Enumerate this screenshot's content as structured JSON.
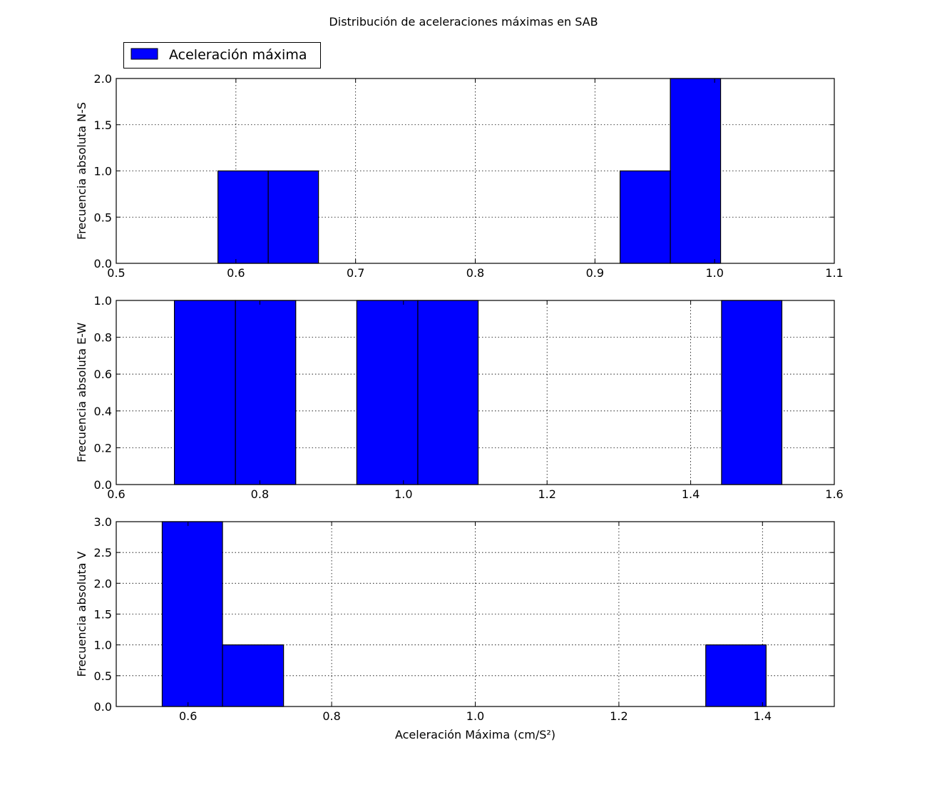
{
  "figure": {
    "title": "Distribución de aceleraciones máximas en SAB",
    "legend": {
      "label": "Aceleración máxima",
      "placement": "upper-left, above the top panel",
      "color": "#0000ff"
    }
  },
  "colors": {
    "bar_fill": "#0000ff",
    "bar_edge": "#000000",
    "background": "#ffffff"
  },
  "chart_data": [
    {
      "type": "bar",
      "histogram": true,
      "ylabel": "Frecuencia absoluta N-S",
      "xlabel": "",
      "xlim": [
        0.5,
        1.1
      ],
      "ylim": [
        0,
        2.0
      ],
      "grid": true,
      "xticks": [
        "0.5",
        "0.6",
        "0.7",
        "0.8",
        "0.9",
        "1.0",
        "1.1"
      ],
      "yticks": [
        "0.0",
        "0.5",
        "1.0",
        "1.5",
        "2.0"
      ],
      "bins": [
        {
          "x0": 0.585,
          "x1": 0.627,
          "value": 1
        },
        {
          "x0": 0.627,
          "x1": 0.669,
          "value": 1
        },
        {
          "x0": 0.921,
          "x1": 0.963,
          "value": 1
        },
        {
          "x0": 0.963,
          "x1": 1.005,
          "value": 2
        }
      ]
    },
    {
      "type": "bar",
      "histogram": true,
      "ylabel": "Frecuencia absoluta E-W",
      "xlabel": "",
      "xlim": [
        0.6,
        1.6
      ],
      "ylim": [
        0,
        1.0
      ],
      "grid": true,
      "xticks": [
        "0.6",
        "0.8",
        "1.0",
        "1.2",
        "1.4",
        "1.6"
      ],
      "yticks": [
        "0.0",
        "0.2",
        "0.4",
        "0.6",
        "0.8",
        "1.0"
      ],
      "bins": [
        {
          "x0": 0.681,
          "x1": 0.766,
          "value": 1
        },
        {
          "x0": 0.766,
          "x1": 0.85,
          "value": 1
        },
        {
          "x0": 0.935,
          "x1": 1.02,
          "value": 1
        },
        {
          "x0": 1.02,
          "x1": 1.104,
          "value": 1
        },
        {
          "x0": 1.443,
          "x1": 1.527,
          "value": 1
        }
      ]
    },
    {
      "type": "bar",
      "histogram": true,
      "ylabel": "Frecuencia absoluta V",
      "xlabel": "Aceleración Máxima (cm/S²)",
      "xlim": [
        0.5,
        1.5
      ],
      "ylim": [
        0,
        3.0
      ],
      "grid": true,
      "xticks": [
        "0.6",
        "0.8",
        "1.0",
        "1.2",
        "1.4"
      ],
      "yticks": [
        "0.0",
        "0.5",
        "1.0",
        "1.5",
        "2.0",
        "2.5",
        "3.0"
      ],
      "bins": [
        {
          "x0": 0.564,
          "x1": 0.648,
          "value": 3
        },
        {
          "x0": 0.648,
          "x1": 0.733,
          "value": 1
        },
        {
          "x0": 1.321,
          "x1": 1.405,
          "value": 1
        }
      ]
    }
  ]
}
